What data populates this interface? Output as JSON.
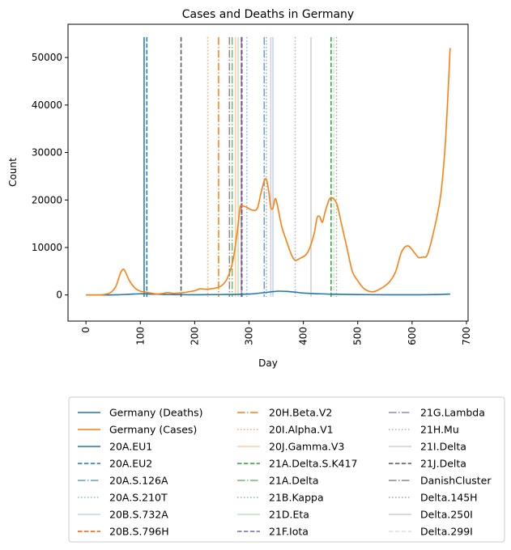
{
  "chart_data": {
    "type": "line",
    "title": "Cases and Deaths in Germany",
    "xlabel": "Day",
    "ylabel": "Count",
    "xlim": [
      -33,
      703
    ],
    "ylim": [
      -5500,
      57000
    ],
    "xticks": [
      0,
      100,
      200,
      300,
      400,
      500,
      600,
      700
    ],
    "yticks": [
      0,
      10000,
      20000,
      30000,
      40000,
      50000
    ],
    "grid": false,
    "legend_position": "bottom, outside plot, 3 columns",
    "series": [
      {
        "name": "Germany (Deaths)",
        "color": "#1f77b4",
        "points": [
          [
            0,
            0
          ],
          [
            40,
            0
          ],
          [
            60,
            50
          ],
          [
            80,
            150
          ],
          [
            100,
            250
          ],
          [
            120,
            200
          ],
          [
            150,
            100
          ],
          [
            200,
            50
          ],
          [
            250,
            100
          ],
          [
            300,
            200
          ],
          [
            320,
            400
          ],
          [
            340,
            650
          ],
          [
            355,
            800
          ],
          [
            370,
            750
          ],
          [
            385,
            600
          ],
          [
            400,
            400
          ],
          [
            430,
            250
          ],
          [
            460,
            150
          ],
          [
            500,
            80
          ],
          [
            550,
            50
          ],
          [
            600,
            40
          ],
          [
            640,
            80
          ],
          [
            670,
            200
          ]
        ]
      },
      {
        "name": "Germany (Cases)",
        "color": "#ff7f0e",
        "points": [
          [
            0,
            0
          ],
          [
            30,
            50
          ],
          [
            45,
            500
          ],
          [
            55,
            1800
          ],
          [
            63,
            4500
          ],
          [
            68,
            5400
          ],
          [
            72,
            5000
          ],
          [
            80,
            3000
          ],
          [
            90,
            1500
          ],
          [
            100,
            800
          ],
          [
            110,
            600
          ],
          [
            120,
            400
          ],
          [
            130,
            200
          ],
          [
            140,
            300
          ],
          [
            150,
            500
          ],
          [
            160,
            350
          ],
          [
            170,
            400
          ],
          [
            180,
            500
          ],
          [
            190,
            700
          ],
          [
            200,
            900
          ],
          [
            210,
            1300
          ],
          [
            220,
            1200
          ],
          [
            230,
            1300
          ],
          [
            240,
            1500
          ],
          [
            250,
            2000
          ],
          [
            260,
            3500
          ],
          [
            270,
            7000
          ],
          [
            278,
            13000
          ],
          [
            283,
            18000
          ],
          [
            285,
            18800
          ],
          [
            295,
            18500
          ],
          [
            305,
            17900
          ],
          [
            315,
            18200
          ],
          [
            322,
            21500
          ],
          [
            328,
            24000
          ],
          [
            332,
            24300
          ],
          [
            336,
            22000
          ],
          [
            340,
            18500
          ],
          [
            344,
            18300
          ],
          [
            348,
            20300
          ],
          [
            352,
            19000
          ],
          [
            360,
            14500
          ],
          [
            370,
            11000
          ],
          [
            378,
            8500
          ],
          [
            385,
            7300
          ],
          [
            395,
            7800
          ],
          [
            405,
            8500
          ],
          [
            412,
            10000
          ],
          [
            420,
            13000
          ],
          [
            425,
            16200
          ],
          [
            430,
            16500
          ],
          [
            435,
            15300
          ],
          [
            440,
            17500
          ],
          [
            448,
            20200
          ],
          [
            455,
            20300
          ],
          [
            462,
            19000
          ],
          [
            470,
            15000
          ],
          [
            480,
            10000
          ],
          [
            490,
            5000
          ],
          [
            500,
            3000
          ],
          [
            510,
            1500
          ],
          [
            520,
            800
          ],
          [
            530,
            700
          ],
          [
            540,
            1200
          ],
          [
            550,
            1900
          ],
          [
            560,
            3000
          ],
          [
            570,
            5000
          ],
          [
            580,
            8900
          ],
          [
            588,
            10200
          ],
          [
            595,
            10200
          ],
          [
            605,
            8800
          ],
          [
            612,
            7900
          ],
          [
            620,
            8000
          ],
          [
            628,
            8500
          ],
          [
            640,
            13500
          ],
          [
            652,
            20500
          ],
          [
            660,
            30000
          ],
          [
            665,
            40000
          ],
          [
            670,
            52000
          ]
        ]
      }
    ],
    "vlines": [
      {
        "name": "20A.EU1",
        "x": 107,
        "color": "#1f77b4",
        "style": "solid"
      },
      {
        "name": "20A.EU2",
        "x": 112,
        "color": "#1f77b4",
        "style": "dashed"
      },
      {
        "name": "20A.S.126A",
        "x": 328,
        "color": "#1f77b4",
        "style": "dashdot",
        "alpha": 0.7
      },
      {
        "name": "20A.S.210T",
        "x": 296,
        "color": "#1f77b4",
        "style": "dotted",
        "alpha": 0.5
      },
      {
        "name": "20B.S.732A",
        "x": 344,
        "color": "#1f77b4",
        "style": "solid",
        "alpha": 0.3
      },
      {
        "name": "20B.S.796H",
        "x": 286,
        "color": "#ff5500",
        "style": "dashed"
      },
      {
        "name": "20H.Beta.V2",
        "x": 244,
        "color": "#ff7f0e",
        "style": "dashdot"
      },
      {
        "name": "20I.Alpha.V1",
        "x": 224,
        "color": "#ff7f0e",
        "style": "dotted",
        "alpha": 0.7
      },
      {
        "name": "20J.Gamma.V3",
        "x": 275,
        "color": "#ff7f0e",
        "style": "solid",
        "alpha": 0.4
      },
      {
        "name": "21A.Delta.S.K417",
        "x": 451,
        "color": "#2ca02c",
        "style": "dashed"
      },
      {
        "name": "21A.Delta",
        "x": 269,
        "color": "#2ca02c",
        "style": "dashdot",
        "alpha": 0.7
      },
      {
        "name": "21B.Kappa",
        "x": 461,
        "color": "#2ca02c",
        "style": "dotted",
        "alpha": 0.6
      },
      {
        "name": "21D.Eta",
        "x": 280,
        "color": "#2ca02c",
        "style": "solid",
        "alpha": 0.3
      },
      {
        "name": "21F.Iota",
        "x": 287,
        "color": "#6a51a3",
        "style": "dashed",
        "alpha": 0.9
      },
      {
        "name": "21G.Lambda",
        "x": 286,
        "color": "#6a51a3",
        "style": "dashdot",
        "alpha": 0.7
      },
      {
        "name": "21H.Mu",
        "x": 385,
        "color": "#6a51a3",
        "style": "dotted",
        "alpha": 0.5
      },
      {
        "name": "21I.Delta",
        "x": 340,
        "color": "#6a51a3",
        "style": "solid",
        "alpha": 0.3
      },
      {
        "name": "21J.Delta",
        "x": 175,
        "color": "#555555",
        "style": "dashed"
      },
      {
        "name": "DanishCluster",
        "x": 264,
        "color": "#555555",
        "style": "dashdot",
        "alpha": 0.7
      },
      {
        "name": "Delta.145H",
        "x": 332,
        "color": "#555555",
        "style": "dotted",
        "alpha": 0.5
      },
      {
        "name": "Delta.250I",
        "x": 414,
        "color": "#555555",
        "style": "solid",
        "alpha": 0.3
      },
      {
        "name": "Delta.299I",
        "x": 456,
        "color": "#555555",
        "style": "dashed",
        "alpha": 0.2
      }
    ],
    "legend": [
      {
        "label": "Germany (Deaths)",
        "color": "#1f77b4",
        "style": "solid",
        "alpha": 1
      },
      {
        "label": "Germany (Cases)",
        "color": "#ff7f0e",
        "style": "solid",
        "alpha": 1
      },
      {
        "label": "20A.EU1",
        "color": "#1f77b4",
        "style": "solid",
        "alpha": 1
      },
      {
        "label": "20A.EU2",
        "color": "#1f77b4",
        "style": "dashed",
        "alpha": 1
      },
      {
        "label": "20A.S.126A",
        "color": "#1f77b4",
        "style": "dashdot",
        "alpha": 0.7
      },
      {
        "label": "20A.S.210T",
        "color": "#1f77b4",
        "style": "dotted",
        "alpha": 0.5
      },
      {
        "label": "20B.S.732A",
        "color": "#1f77b4",
        "style": "solid",
        "alpha": 0.3
      },
      {
        "label": "20B.S.796H",
        "color": "#ff5500",
        "style": "dashed",
        "alpha": 1
      },
      {
        "label": "20H.Beta.V2",
        "color": "#ff7f0e",
        "style": "dashdot",
        "alpha": 1
      },
      {
        "label": "20I.Alpha.V1",
        "color": "#ff7f0e",
        "style": "dotted",
        "alpha": 0.7
      },
      {
        "label": "20J.Gamma.V3",
        "color": "#ff7f0e",
        "style": "solid",
        "alpha": 0.4
      },
      {
        "label": "21A.Delta.S.K417",
        "color": "#2ca02c",
        "style": "dashed",
        "alpha": 1
      },
      {
        "label": "21A.Delta",
        "color": "#2ca02c",
        "style": "dashdot",
        "alpha": 0.7
      },
      {
        "label": "21B.Kappa",
        "color": "#2ca02c",
        "style": "dotted",
        "alpha": 0.6
      },
      {
        "label": "21D.Eta",
        "color": "#2ca02c",
        "style": "solid",
        "alpha": 0.3
      },
      {
        "label": "21F.Iota",
        "color": "#6a51a3",
        "style": "dashed",
        "alpha": 0.9
      },
      {
        "label": "21G.Lambda",
        "color": "#6a51a3",
        "style": "dashdot",
        "alpha": 0.7
      },
      {
        "label": "21H.Mu",
        "color": "#6a51a3",
        "style": "dotted",
        "alpha": 0.5
      },
      {
        "label": "21I.Delta",
        "color": "#6a51a3",
        "style": "solid",
        "alpha": 0.3
      },
      {
        "label": "21J.Delta",
        "color": "#555555",
        "style": "dashed",
        "alpha": 1
      },
      {
        "label": "DanishCluster",
        "color": "#555555",
        "style": "dashdot",
        "alpha": 0.7
      },
      {
        "label": "Delta.145H",
        "color": "#555555",
        "style": "dotted",
        "alpha": 0.5
      },
      {
        "label": "Delta.250I",
        "color": "#555555",
        "style": "solid",
        "alpha": 0.3
      },
      {
        "label": "Delta.299I",
        "color": "#555555",
        "style": "dashed",
        "alpha": 0.2
      }
    ]
  }
}
